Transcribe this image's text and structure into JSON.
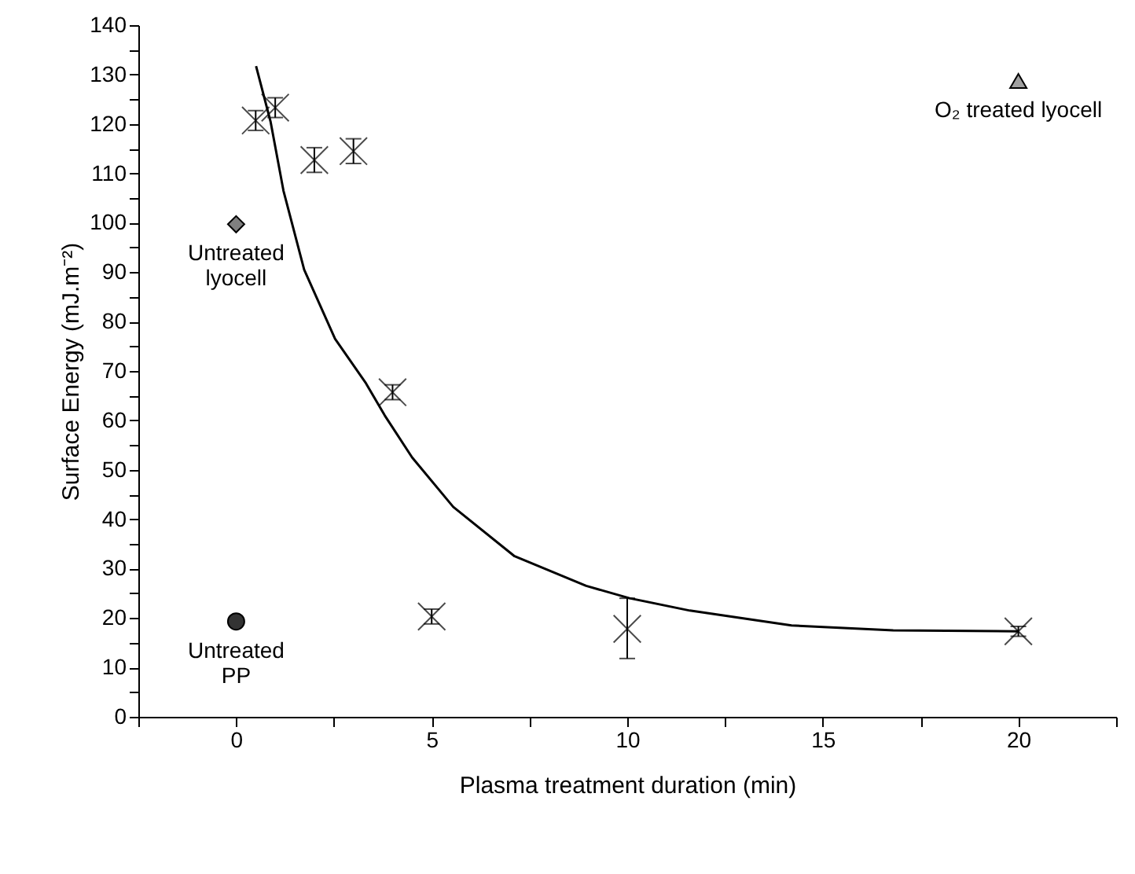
{
  "chart_data": {
    "type": "scatter",
    "xlabel": "Plasma treatment duration (min)",
    "ylabel": "Surface Energy (mJ.m⁻²)",
    "xlim": [
      -2.5,
      22.5
    ],
    "ylim": [
      0,
      140
    ],
    "xticks": [
      {
        "value": -2.5,
        "label": null
      },
      0,
      {
        "value": 2.5,
        "label": null
      },
      5,
      {
        "value": 7.5,
        "label": null
      },
      10,
      {
        "value": 12.5,
        "label": null
      },
      15,
      {
        "value": 17.5,
        "label": null
      },
      20,
      {
        "value": 22.5,
        "label": null
      }
    ],
    "yticks": [
      0,
      {
        "value": 5,
        "label": null
      },
      10,
      {
        "value": 15,
        "label": null
      },
      20,
      {
        "value": 25,
        "label": null
      },
      30,
      {
        "value": 35,
        "label": null
      },
      40,
      {
        "value": 45,
        "label": null
      },
      50,
      {
        "value": 55,
        "label": null
      },
      60,
      {
        "value": 65,
        "label": null
      },
      70,
      {
        "value": 75,
        "label": null
      },
      80,
      {
        "value": 85,
        "label": null
      },
      90,
      {
        "value": 95,
        "label": null
      },
      100,
      {
        "value": 105,
        "label": null
      },
      110,
      {
        "value": 115,
        "label": null
      },
      120,
      {
        "value": 125,
        "label": null
      },
      130,
      {
        "value": 135,
        "label": null
      },
      140
    ],
    "grid": false,
    "series": [
      {
        "type": "scatter",
        "marker": "cross",
        "color": "#000000",
        "x": [
          0.5,
          1,
          2,
          3,
          4,
          5,
          10,
          20
        ],
        "values": [
          120.7,
          123.3,
          112.7,
          114.5,
          65.7,
          20.3,
          17.8,
          17.3
        ],
        "errors": [
          2,
          2,
          2.5,
          2.5,
          1.5,
          1.5,
          [
            11.8,
            24
          ],
          1
        ]
      },
      {
        "type": "line",
        "color": "#000000",
        "marker": "none",
        "line_style": "solid",
        "x": [
          0.51,
          0.88,
          1.21,
          1.74,
          2.53,
          3.32,
          3.8,
          4.5,
          5.55,
          7.12,
          8.95,
          10.06,
          11.6,
          14.2,
          16.8,
          20
        ],
        "values": [
          131.7,
          120.5,
          106.5,
          90.5,
          76.5,
          67.5,
          61,
          52.5,
          42.5,
          32.5,
          26.5,
          24,
          21.5,
          18.5,
          17.5,
          17.3
        ]
      },
      {
        "type": "scatter",
        "name": "Untreated\nlyocell",
        "marker": "diamond",
        "color": "#808080",
        "x": [
          0
        ],
        "values": [
          99.7
        ]
      },
      {
        "type": "scatter",
        "name": "Untreated\nPP",
        "marker": "circle",
        "color": "#333333",
        "x": [
          0
        ],
        "values": [
          19.3
        ]
      },
      {
        "type": "scatter",
        "name": "O₂ treated lyocell",
        "marker": "triangle",
        "color": "#a0a0a0",
        "x": [
          20
        ],
        "values": [
          128.7
        ]
      }
    ]
  }
}
